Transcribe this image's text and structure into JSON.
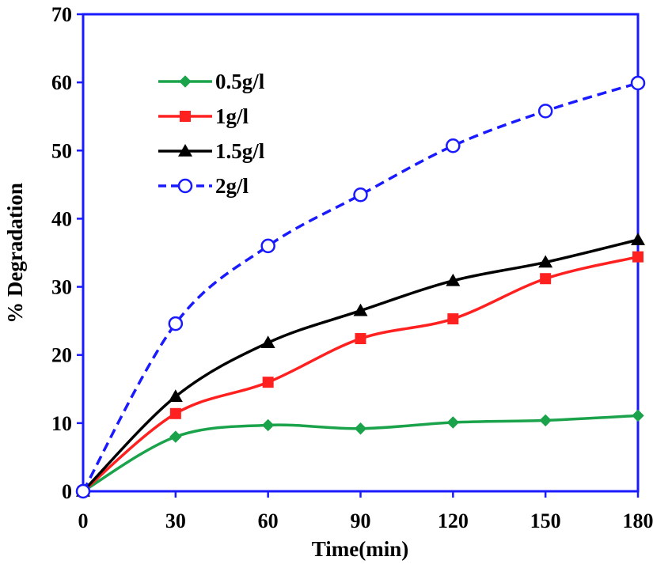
{
  "chart_data": {
    "type": "line",
    "title": "",
    "xlabel": "Time(min)",
    "ylabel": "% Degradation",
    "x": [
      0,
      30,
      60,
      90,
      120,
      150,
      180
    ],
    "xticks": [
      "0",
      "30",
      "60",
      "90",
      "120",
      "150",
      "180"
    ],
    "yticks": [
      "0",
      "10",
      "20",
      "30",
      "40",
      "50",
      "60",
      "70"
    ],
    "xlim": [
      0,
      180
    ],
    "ylim": [
      0,
      70
    ],
    "grid": false,
    "legend_position": "top-left",
    "axis_color": "#1a1aff",
    "series": [
      {
        "name": "0.5g/l",
        "values": [
          0,
          8.0,
          9.7,
          9.2,
          10.1,
          10.4,
          11.1
        ],
        "color": "#1aa34a",
        "marker": "diamond",
        "dash": "solid"
      },
      {
        "name": "1g/l",
        "values": [
          0,
          11.4,
          16.0,
          22.4,
          25.3,
          31.2,
          34.4
        ],
        "color": "#ff2020",
        "marker": "square",
        "dash": "solid"
      },
      {
        "name": "1.5g/l",
        "values": [
          0,
          13.9,
          21.8,
          26.5,
          30.9,
          33.6,
          36.9
        ],
        "color": "#000000",
        "marker": "triangle",
        "dash": "solid"
      },
      {
        "name": "2g/l",
        "values": [
          0,
          24.6,
          36.0,
          43.5,
          50.7,
          55.8,
          59.9
        ],
        "color": "#1a1aff",
        "marker": "circle-open",
        "dash": "dashed"
      }
    ]
  }
}
